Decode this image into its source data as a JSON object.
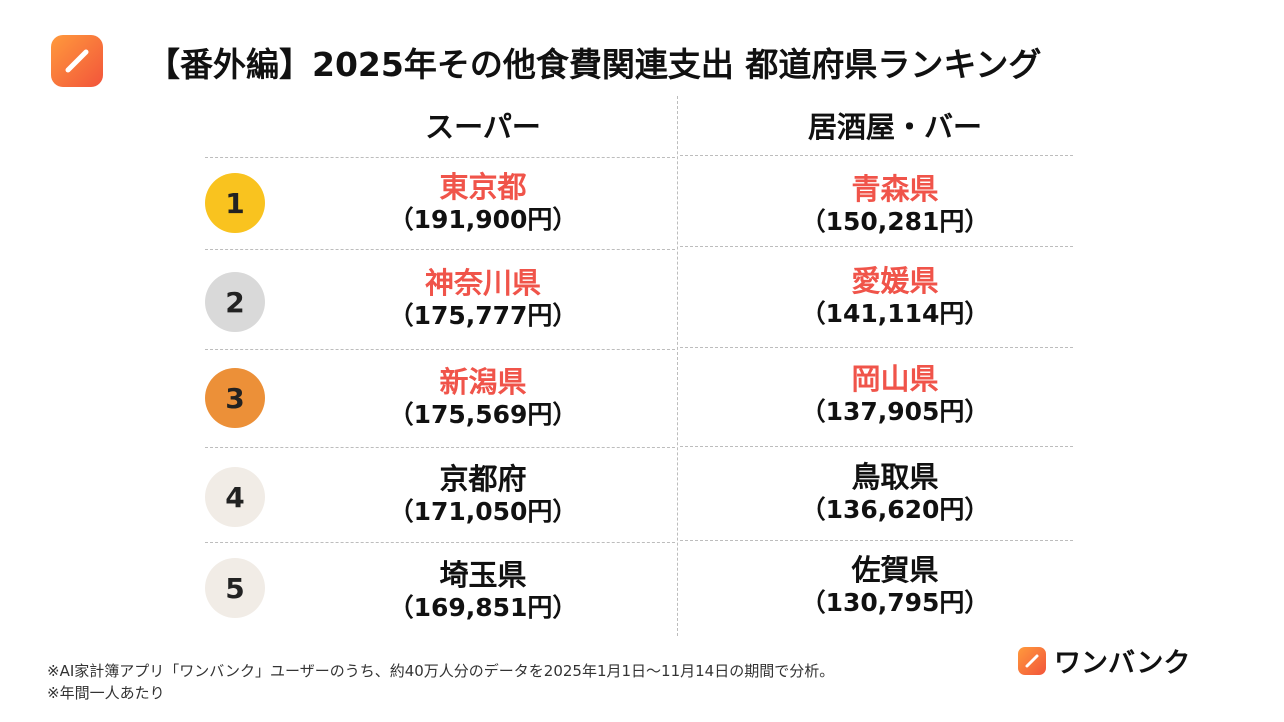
{
  "title": "【番外編】2025年その他食費関連支出 都道府県ランキング",
  "columns": {
    "left": "スーパー",
    "right": "居酒屋・バー"
  },
  "rows": [
    {
      "rank": "1",
      "badge_color": "#f9c31f",
      "left": {
        "pref": "東京都",
        "amount": "（191,900円）"
      },
      "right": {
        "pref": "青森県",
        "amount": "（150,281円）"
      }
    },
    {
      "rank": "2",
      "badge_color": "#d9d9d9",
      "left": {
        "pref": "神奈川県",
        "amount": "（175,777円）"
      },
      "right": {
        "pref": "愛媛県",
        "amount": "（141,114円）"
      }
    },
    {
      "rank": "3",
      "badge_color": "#ec9038",
      "left": {
        "pref": "新潟県",
        "amount": "（175,569円）"
      },
      "right": {
        "pref": "岡山県",
        "amount": "（137,905円）"
      }
    },
    {
      "rank": "4",
      "badge_color": "#f1ece6",
      "left": {
        "pref": "京都府",
        "amount": "（171,050円）"
      },
      "right": {
        "pref": "鳥取県",
        "amount": "（136,620円）"
      }
    },
    {
      "rank": "5",
      "badge_color": "#f1ece6",
      "left": {
        "pref": "埼玉県",
        "amount": "（169,851円）"
      },
      "right": {
        "pref": "佐賀県",
        "amount": "（130,795円）"
      }
    }
  ],
  "highlight_color": "#f0544a",
  "footnotes": [
    "※AI家計簿アプリ「ワンバンク」ユーザーのうち、約40万人分のデータを2025年1月1日〜11月14日の期間で分析。",
    "※年間一人あたり"
  ],
  "brand": {
    "name": "ワンバンク",
    "icon": "pencil-icon"
  }
}
